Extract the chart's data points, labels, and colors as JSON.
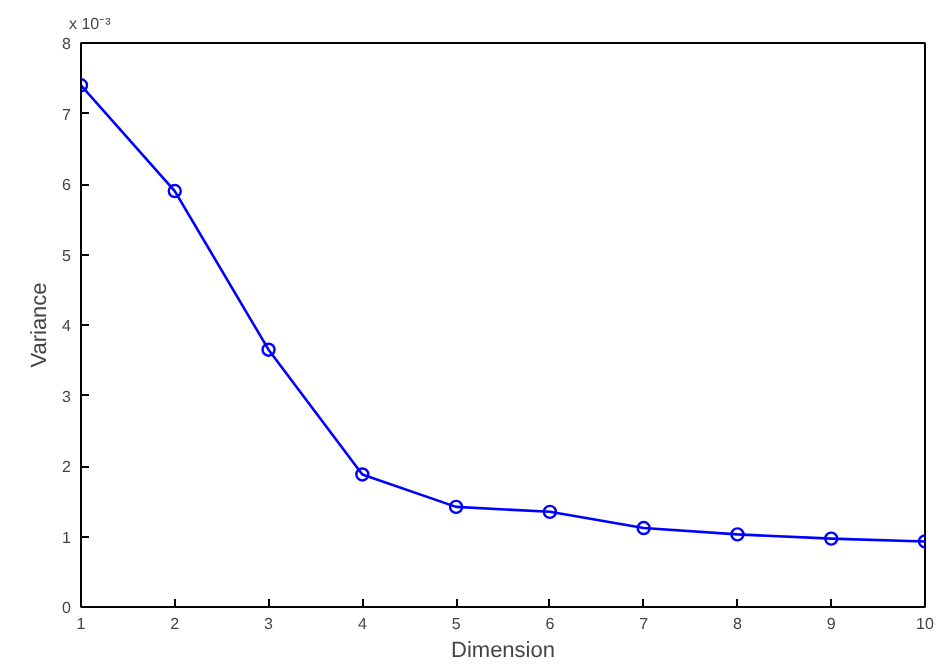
{
  "chart_data": {
    "type": "line",
    "xlabel": "Dimension",
    "ylabel": "Variance",
    "annotations": [
      "x 10⁻³"
    ],
    "x": [
      1,
      2,
      3,
      4,
      5,
      6,
      7,
      8,
      9,
      10
    ],
    "series": [
      {
        "color": "#0000ff",
        "values": [
          7.4,
          5.9,
          3.65,
          1.88,
          1.42,
          1.35,
          1.12,
          1.03,
          0.97,
          0.93
        ]
      }
    ],
    "marker": "circle",
    "line_style": "solid",
    "grid": false,
    "xlim": [
      1,
      10
    ],
    "xticks": [
      1,
      2,
      3,
      4,
      5,
      6,
      7,
      8,
      9,
      10
    ],
    "ylim": [
      0,
      8
    ],
    "yticks": [
      0,
      1,
      2,
      3,
      4,
      5,
      6,
      7,
      8
    ]
  }
}
